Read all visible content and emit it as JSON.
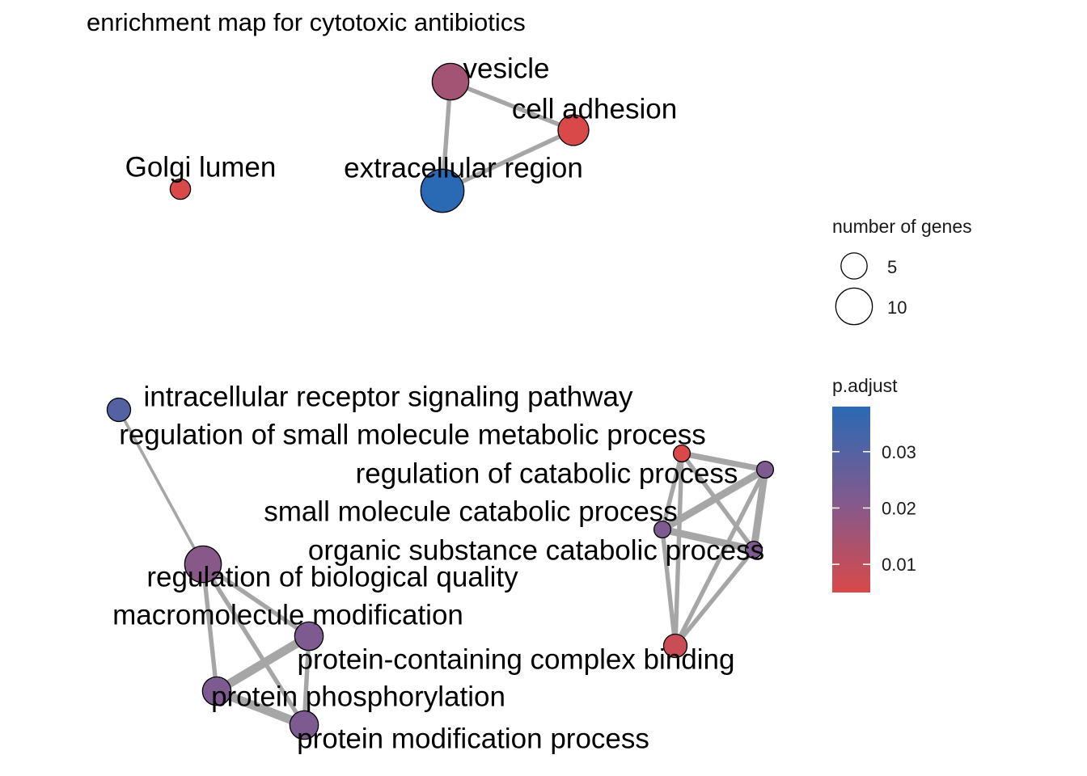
{
  "title": "enrichment map for cytotoxic antibiotics",
  "nodes": [
    {
      "id": "vesicle",
      "label": "vesicle",
      "genes": 10,
      "p_adjust": 0.015
    },
    {
      "id": "cell_adhesion",
      "label": "cell adhesion",
      "genes": 7,
      "p_adjust": 0.005
    },
    {
      "id": "extracellular_region",
      "label": "extracellular region",
      "genes": 14,
      "p_adjust": 0.038
    },
    {
      "id": "golgi_lumen",
      "label": "Golgi lumen",
      "genes": 3,
      "p_adjust": 0.005
    },
    {
      "id": "intracellular_receptor",
      "label": "intracellular receptor signaling pathway",
      "genes": 4,
      "p_adjust": 0.03
    },
    {
      "id": "reg_small_molecule",
      "label": "regulation of small molecule metabolic process",
      "genes": 2,
      "p_adjust": 0.005
    },
    {
      "id": "reg_catabolic",
      "label": "regulation of catabolic process",
      "genes": 2,
      "p_adjust": 0.022
    },
    {
      "id": "small_molecule_catabolic",
      "label": "small molecule catabolic process",
      "genes": 2,
      "p_adjust": 0.022
    },
    {
      "id": "organic_substance_catabolic",
      "label": "organic substance catabolic process",
      "genes": 2,
      "p_adjust": 0.022
    },
    {
      "id": "reg_biological_quality",
      "label": "regulation of biological quality",
      "genes": 10,
      "p_adjust": 0.02
    },
    {
      "id": "macromolecule_modification",
      "label": "macromolecule modification",
      "genes": 6,
      "p_adjust": 0.022
    },
    {
      "id": "protein_complex_binding",
      "label": "protein-containing complex binding",
      "genes": 4,
      "p_adjust": 0.008
    },
    {
      "id": "protein_phosphorylation",
      "label": "protein phosphorylation",
      "genes": 6,
      "p_adjust": 0.022
    },
    {
      "id": "protein_modification",
      "label": "protein modification process",
      "genes": 6,
      "p_adjust": 0.022
    }
  ],
  "edges": [
    {
      "source": "vesicle",
      "target": "cell_adhesion",
      "weight": 3
    },
    {
      "source": "vesicle",
      "target": "extracellular_region",
      "weight": 3
    },
    {
      "source": "cell_adhesion",
      "target": "extracellular_region",
      "weight": 3
    },
    {
      "source": "intracellular_receptor",
      "target": "reg_biological_quality",
      "weight": 2
    },
    {
      "source": "reg_biological_quality",
      "target": "macromolecule_modification",
      "weight": 3
    },
    {
      "source": "reg_biological_quality",
      "target": "protein_phosphorylation",
      "weight": 3
    },
    {
      "source": "reg_biological_quality",
      "target": "protein_modification",
      "weight": 3
    },
    {
      "source": "macromolecule_modification",
      "target": "protein_phosphorylation",
      "weight": 6
    },
    {
      "source": "macromolecule_modification",
      "target": "protein_modification",
      "weight": 3
    },
    {
      "source": "protein_phosphorylation",
      "target": "protein_modification",
      "weight": 6
    },
    {
      "source": "reg_small_molecule",
      "target": "reg_catabolic",
      "weight": 4
    },
    {
      "source": "reg_small_molecule",
      "target": "small_molecule_catabolic",
      "weight": 3
    },
    {
      "source": "reg_small_molecule",
      "target": "organic_substance_catabolic",
      "weight": 3
    },
    {
      "source": "reg_catabolic",
      "target": "small_molecule_catabolic",
      "weight": 5
    },
    {
      "source": "reg_catabolic",
      "target": "organic_substance_catabolic",
      "weight": 5
    },
    {
      "source": "small_molecule_catabolic",
      "target": "organic_substance_catabolic",
      "weight": 5
    },
    {
      "source": "protein_complex_binding",
      "target": "reg_small_molecule",
      "weight": 3
    },
    {
      "source": "protein_complex_binding",
      "target": "reg_catabolic",
      "weight": 3
    },
    {
      "source": "protein_complex_binding",
      "target": "small_molecule_catabolic",
      "weight": 3
    },
    {
      "source": "protein_complex_binding",
      "target": "organic_substance_catabolic",
      "weight": 3
    }
  ],
  "legend": {
    "size_title": "number of genes",
    "size_breaks": [
      {
        "label": "5",
        "genes": 5
      },
      {
        "label": "10",
        "genes": 10
      }
    ],
    "color_title": "p.adjust",
    "color_ticks": [
      {
        "label": "0.03",
        "value": 0.03
      },
      {
        "label": "0.02",
        "value": 0.02
      },
      {
        "label": "0.01",
        "value": 0.01
      }
    ],
    "color_range": [
      0.005,
      0.038
    ],
    "color_low": "#D9494A",
    "color_mid": "#805A8E",
    "color_high": "#2A6AB4"
  },
  "edge_color": "#A6A6A6"
}
